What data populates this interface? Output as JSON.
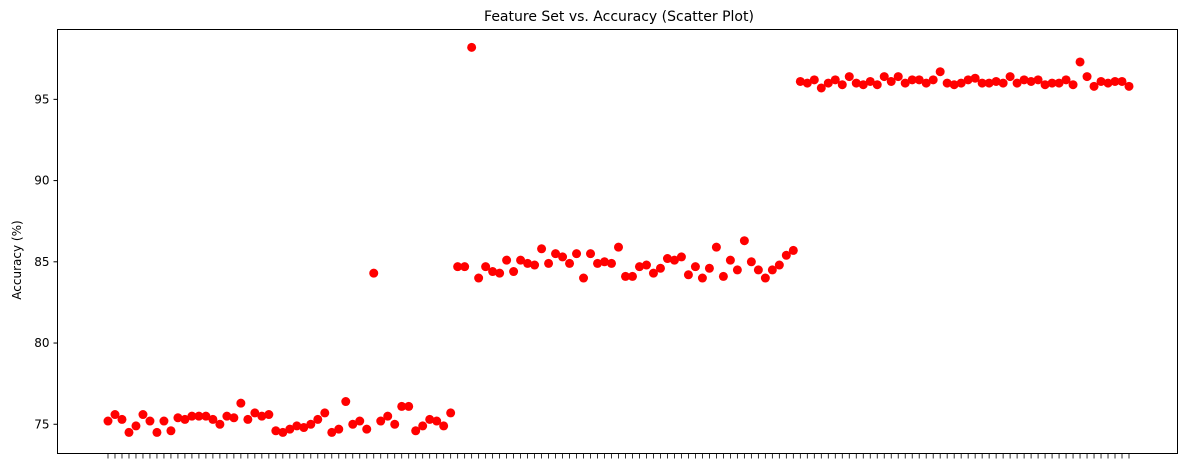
{
  "chart_data": {
    "type": "scatter",
    "title": "Feature Set vs. Accuracy (Scatter Plot)",
    "xlabel": "",
    "ylabel": "Accuracy (%)",
    "ylim": [
      73.2,
      99.3
    ],
    "y_ticks": [
      75,
      80,
      85,
      90,
      95
    ],
    "x_tick_count": 147,
    "grid": false,
    "legend": "none",
    "marker_color": "#ff0000",
    "series": [
      {
        "values": [
          75.2,
          75.6,
          75.3,
          74.5,
          74.9,
          75.6,
          75.2,
          74.5,
          75.2,
          74.6,
          75.4,
          75.3,
          75.5,
          75.5,
          75.5,
          75.3,
          75.0,
          75.5,
          75.4,
          76.3,
          75.3,
          75.7,
          75.5,
          75.6,
          74.6,
          74.5,
          74.7,
          74.9,
          74.8,
          75.0,
          75.3,
          75.7,
          74.5,
          74.7,
          76.4,
          75.0,
          75.2,
          74.7,
          84.3,
          75.2,
          75.5,
          75.0,
          76.1,
          76.1,
          74.6,
          74.9,
          75.3,
          75.2,
          74.9,
          75.7,
          84.7,
          84.7,
          98.2,
          84.0,
          84.7,
          84.4,
          84.3,
          85.1,
          84.4,
          85.1,
          84.9,
          84.8,
          85.8,
          84.9,
          85.5,
          85.3,
          84.9,
          85.5,
          84.0,
          85.5,
          84.9,
          85.0,
          84.9,
          85.9,
          84.1,
          84.1,
          84.7,
          84.8,
          84.3,
          84.6,
          85.2,
          85.1,
          85.3,
          84.2,
          84.7,
          84.0,
          84.6,
          85.9,
          84.1,
          85.1,
          84.5,
          86.3,
          85.0,
          84.5,
          84.0,
          84.5,
          84.8,
          85.4,
          85.7,
          96.1,
          96.0,
          96.2,
          95.7,
          96.0,
          96.2,
          95.9,
          96.4,
          96.0,
          95.9,
          96.1,
          95.9,
          96.4,
          96.1,
          96.4,
          96.0,
          96.2,
          96.2,
          96.0,
          96.2,
          96.7,
          96.0,
          95.9,
          96.0,
          96.2,
          96.3,
          96.0,
          96.0,
          96.1,
          96.0,
          96.4,
          96.0,
          96.2,
          96.1,
          96.2,
          95.9,
          96.0,
          96.0,
          96.2,
          95.9,
          97.3,
          96.4,
          95.8,
          96.1,
          96.0,
          96.1,
          96.1,
          95.8
        ]
      }
    ]
  }
}
